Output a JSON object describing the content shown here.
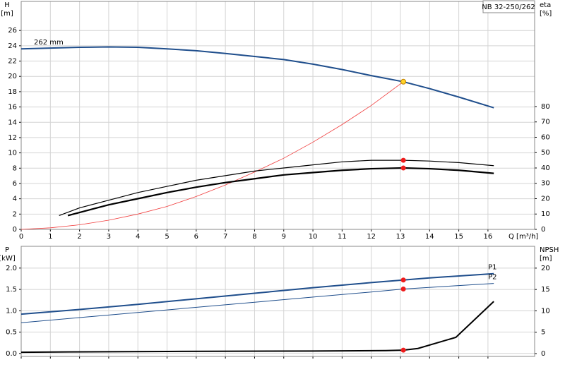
{
  "chart_data": [
    {
      "type": "line",
      "title": "NB 32-250/262",
      "ylabel": "H",
      "yunit": "[m]",
      "y2label": "eta",
      "y2unit": "[%]",
      "xlabel": "Q [m³/h]",
      "xlim": [
        0,
        17.6
      ],
      "xticks": [
        0,
        1,
        2,
        3,
        4,
        5,
        6,
        7,
        8,
        9,
        10,
        11,
        12,
        13,
        14,
        15,
        16
      ],
      "ylim": [
        0,
        29.8
      ],
      "yticks": [
        0,
        2,
        4,
        6,
        8,
        10,
        12,
        14,
        16,
        18,
        20,
        22,
        24,
        26
      ],
      "y2lim": [
        0,
        148.5
      ],
      "y2ticks": [
        0,
        10,
        20,
        30,
        40,
        50,
        60,
        70,
        80
      ],
      "grid": true,
      "legend": "line-start",
      "series": [
        {
          "name": "262 mm",
          "color": "#1f4e8c",
          "width": 2,
          "x": [
            0,
            1,
            2,
            3,
            4,
            5,
            6,
            7,
            8,
            9,
            10,
            11,
            12,
            13.1,
            14,
            15,
            16.2
          ],
          "values": [
            23.6,
            23.7,
            23.8,
            23.85,
            23.8,
            23.6,
            23.35,
            23.0,
            22.6,
            22.2,
            21.6,
            20.9,
            20.1,
            19.3,
            18.4,
            17.3,
            15.9
          ]
        },
        {
          "color": "#f03c3c",
          "width": 0.8,
          "x": [
            0,
            1,
            2,
            3,
            4,
            5,
            6,
            7,
            8,
            9,
            10,
            11,
            12,
            13.1
          ],
          "values": [
            0,
            0.2,
            0.6,
            1.2,
            2.0,
            3.0,
            4.3,
            5.8,
            7.5,
            9.3,
            11.4,
            13.7,
            16.2,
            19.3
          ]
        },
        {
          "color": "#000000",
          "width": 1.2,
          "axis": "y2",
          "x": [
            1.3,
            2,
            3,
            4,
            5,
            6,
            7,
            8,
            9,
            10,
            11,
            12,
            13.1,
            14,
            15,
            16.2
          ],
          "values": [
            9,
            14,
            19,
            24,
            28,
            32,
            35,
            38,
            40,
            42,
            44,
            45,
            45,
            44.5,
            43.5,
            41.5
          ]
        },
        {
          "color": "#000000",
          "width": 2.2,
          "axis": "y2",
          "x": [
            1.6,
            2,
            3,
            4,
            5,
            6,
            7,
            8,
            9,
            10,
            11,
            12,
            13.1,
            14,
            15,
            16.2
          ],
          "values": [
            9,
            11,
            16,
            20,
            24,
            27.5,
            30.5,
            33,
            35.5,
            37,
            38.5,
            39.5,
            40,
            39.5,
            38.5,
            36.5
          ]
        }
      ],
      "points": [
        {
          "x": 13.1,
          "y": 19.3,
          "color": "#ffd42a"
        },
        {
          "x": 13.1,
          "y": 45,
          "color": "#ee1c1c",
          "axis": "y2"
        },
        {
          "x": 13.1,
          "y": 40,
          "color": "#ee1c1c",
          "axis": "y2"
        }
      ]
    },
    {
      "type": "line",
      "ylabel": "P",
      "yunit": "[kW]",
      "y2label": "NPSH",
      "y2unit": "[m]",
      "xlim": [
        0,
        17.6
      ],
      "ylim": [
        -0.07,
        2.51
      ],
      "yticks": [
        {
          "value": 0,
          "label": "0.0"
        },
        {
          "value": 0.5,
          "label": "0.5"
        },
        {
          "value": 1,
          "label": "1.0"
        },
        {
          "value": 1.5,
          "label": "1.5"
        },
        {
          "value": 2,
          "label": "2.0"
        }
      ],
      "y2lim": [
        -0.66,
        25.1
      ],
      "y2ticks": [
        0,
        5,
        10,
        15,
        20
      ],
      "grid": true,
      "legend": "line-end",
      "series": [
        {
          "name": "P1",
          "color": "#1f4e8c",
          "width": 2,
          "x": [
            0,
            2,
            4,
            6,
            8,
            10,
            12,
            13.1,
            14,
            16.2
          ],
          "values": [
            0.92,
            1.03,
            1.15,
            1.28,
            1.41,
            1.54,
            1.66,
            1.72,
            1.77,
            1.87
          ]
        },
        {
          "name": "P2",
          "color": "#1f4e8c",
          "width": 1,
          "x": [
            0,
            4,
            8,
            12,
            13.1,
            16.2
          ],
          "values": [
            0.72,
            0.96,
            1.2,
            1.44,
            1.51,
            1.64
          ]
        },
        {
          "color": "#000000",
          "width": 2,
          "axis": "y2",
          "x": [
            0,
            1.6,
            5,
            10,
            12.5,
            13.1,
            13.6,
            14.9,
            16.2
          ],
          "values": [
            0.3,
            0.4,
            0.5,
            0.6,
            0.7,
            0.8,
            1.2,
            3.8,
            12.2
          ]
        }
      ],
      "points": [
        {
          "x": 13.1,
          "y": 1.72,
          "color": "#ee1c1c"
        },
        {
          "x": 13.1,
          "y": 1.51,
          "color": "#ee1c1c"
        },
        {
          "x": 13.1,
          "y": 0.8,
          "color": "#ee1c1c",
          "axis": "y2"
        }
      ]
    }
  ]
}
